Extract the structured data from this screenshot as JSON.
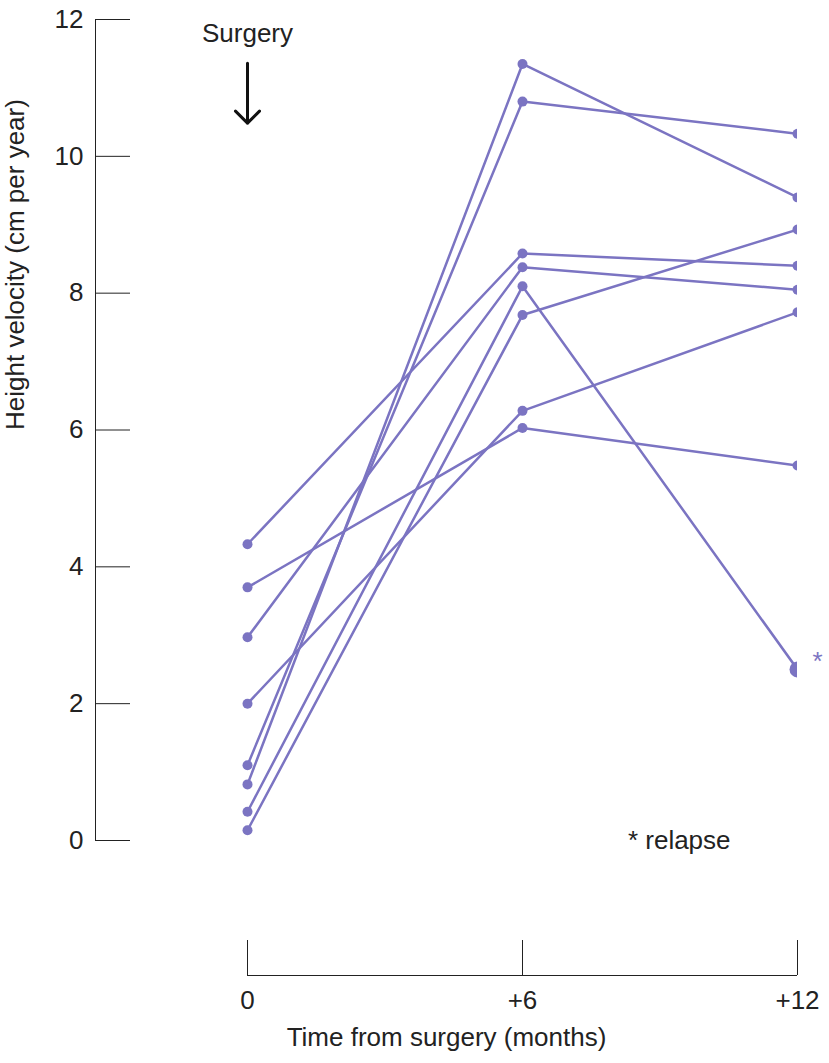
{
  "chart_data": {
    "type": "line",
    "x_label": "Time from surgery (months)",
    "y_label": "Height velocity (cm per year)",
    "x": [
      0,
      6,
      12
    ],
    "xlim": [
      0,
      12
    ],
    "xticks": [
      {
        "value": 0,
        "label": "0"
      },
      {
        "value": 6,
        "label": "+6"
      },
      {
        "value": 12,
        "label": "+12"
      }
    ],
    "ylim": [
      0,
      12
    ],
    "yticks": [
      0,
      2,
      4,
      6,
      8,
      10,
      12
    ],
    "grid": false,
    "marker": "circle",
    "series": [
      {
        "color": "#7b74c2",
        "values": [
          4.33,
          8.58,
          8.4
        ]
      },
      {
        "color": "#7b74c2",
        "values": [
          3.7,
          6.03,
          5.48
        ]
      },
      {
        "color": "#7b74c2",
        "values": [
          2.97,
          8.38,
          8.05
        ]
      },
      {
        "color": "#7b74c2",
        "values": [
          2.0,
          6.28,
          7.72
        ]
      },
      {
        "color": "#7b74c2",
        "values": [
          1.1,
          10.8,
          10.33
        ]
      },
      {
        "color": "#7b74c2",
        "values": [
          0.82,
          11.35,
          9.4
        ]
      },
      {
        "color": "#7b74c2",
        "values": [
          0.42,
          8.1,
          2.5
        ]
      },
      {
        "color": "#7b74c2",
        "values": [
          0.15,
          7.68,
          8.93
        ]
      }
    ],
    "annotations": [
      {
        "text": "Surgery",
        "x": 0,
        "y": 11.8,
        "color": "#222222"
      },
      {
        "text": "*",
        "x": 12,
        "y": 2.5,
        "color": "#7b74c2"
      },
      {
        "text": "* relapse",
        "x": 8.3,
        "y": 0,
        "color": "#222222"
      }
    ]
  }
}
